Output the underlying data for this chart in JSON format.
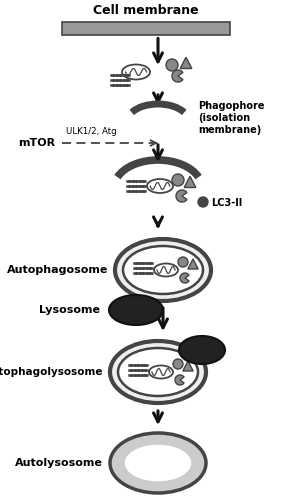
{
  "title": "Cell membrane",
  "background_color": "#ffffff",
  "membrane_color": "#999999",
  "dark_gray": "#444444",
  "mid_gray": "#888888",
  "light_gray": "#cccccc",
  "very_light_gray": "#eeeeee",
  "black": "#111111",
  "stage_labels": {
    "phagophore": "Phagophore\n(isolation\nmembrane)",
    "autophagosome": "Autophagosome",
    "lysosome": "Lysosome",
    "autophagolysosome": "Autophagolysosome",
    "autolysosome": "Autolysosome"
  },
  "mtor_label": "mTOR",
  "ulk_label": "ULK1/2, Atg",
  "lc3_label": "LC3-II"
}
